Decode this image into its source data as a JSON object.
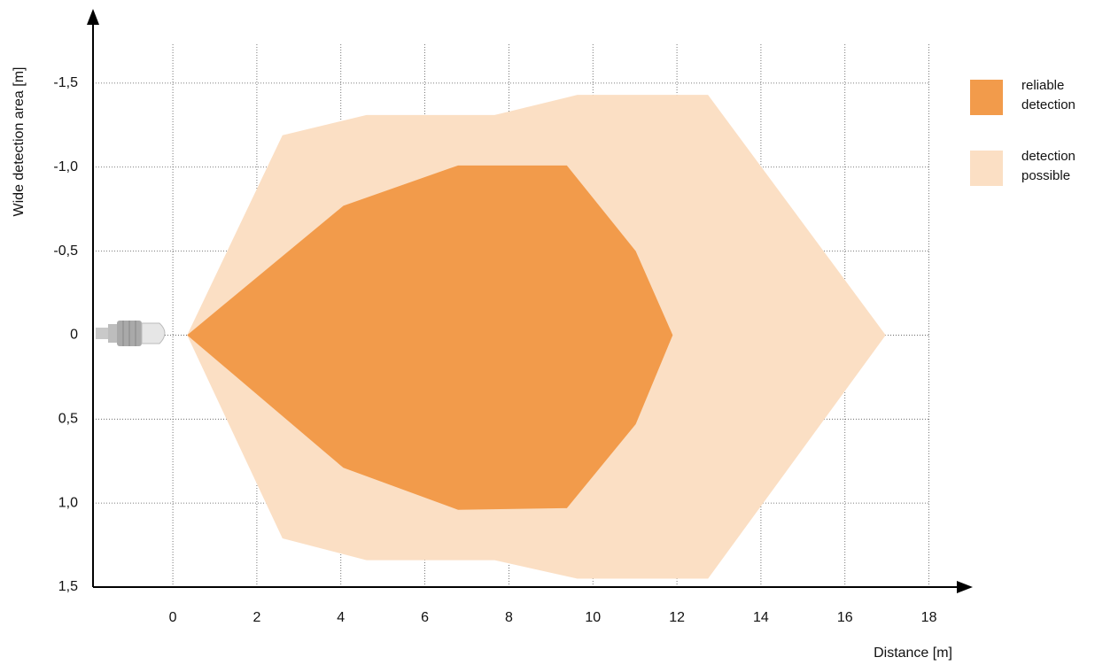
{
  "chart_data": {
    "type": "area",
    "xlabel": "Distance [m]",
    "ylabel": "Wide detection area [m]",
    "xlim": [
      -1.9,
      19
    ],
    "xticks": [
      0,
      2,
      4,
      6,
      8,
      10,
      12,
      14,
      16,
      18
    ],
    "ylim": [
      1.5,
      -1.9
    ],
    "yticks": [
      {
        "value": -1.5,
        "label": "-1,5"
      },
      {
        "value": -1.0,
        "label": "-1,0"
      },
      {
        "value": -0.5,
        "label": "-0,5"
      },
      0,
      {
        "value": 0.5,
        "label": "0,5"
      },
      {
        "value": 1.0,
        "label": "1,0"
      },
      {
        "value": 1.5,
        "label": "1,5"
      }
    ],
    "grid": true,
    "legend": "right",
    "series": [
      {
        "name": "detection possible",
        "color": "#fbdfc4",
        "x": [
          0.34,
          2.61,
          4.61,
          7.66,
          9.63,
          12.74,
          16.97,
          12.74,
          9.63,
          7.66,
          4.61,
          2.61
        ],
        "y": [
          0,
          -1.19,
          -1.31,
          -1.31,
          -1.43,
          -1.43,
          0,
          1.45,
          1.45,
          1.34,
          1.34,
          1.21
        ]
      },
      {
        "name": "reliable detection",
        "color": "#f29b4b",
        "x": [
          0.34,
          4.06,
          6.79,
          9.38,
          11.02,
          11.9,
          11.02,
          9.38,
          6.79,
          4.06
        ],
        "y": [
          0,
          -0.77,
          -1.01,
          -1.01,
          -0.5,
          0,
          0.53,
          1.03,
          1.04,
          0.79
        ]
      }
    ]
  }
}
